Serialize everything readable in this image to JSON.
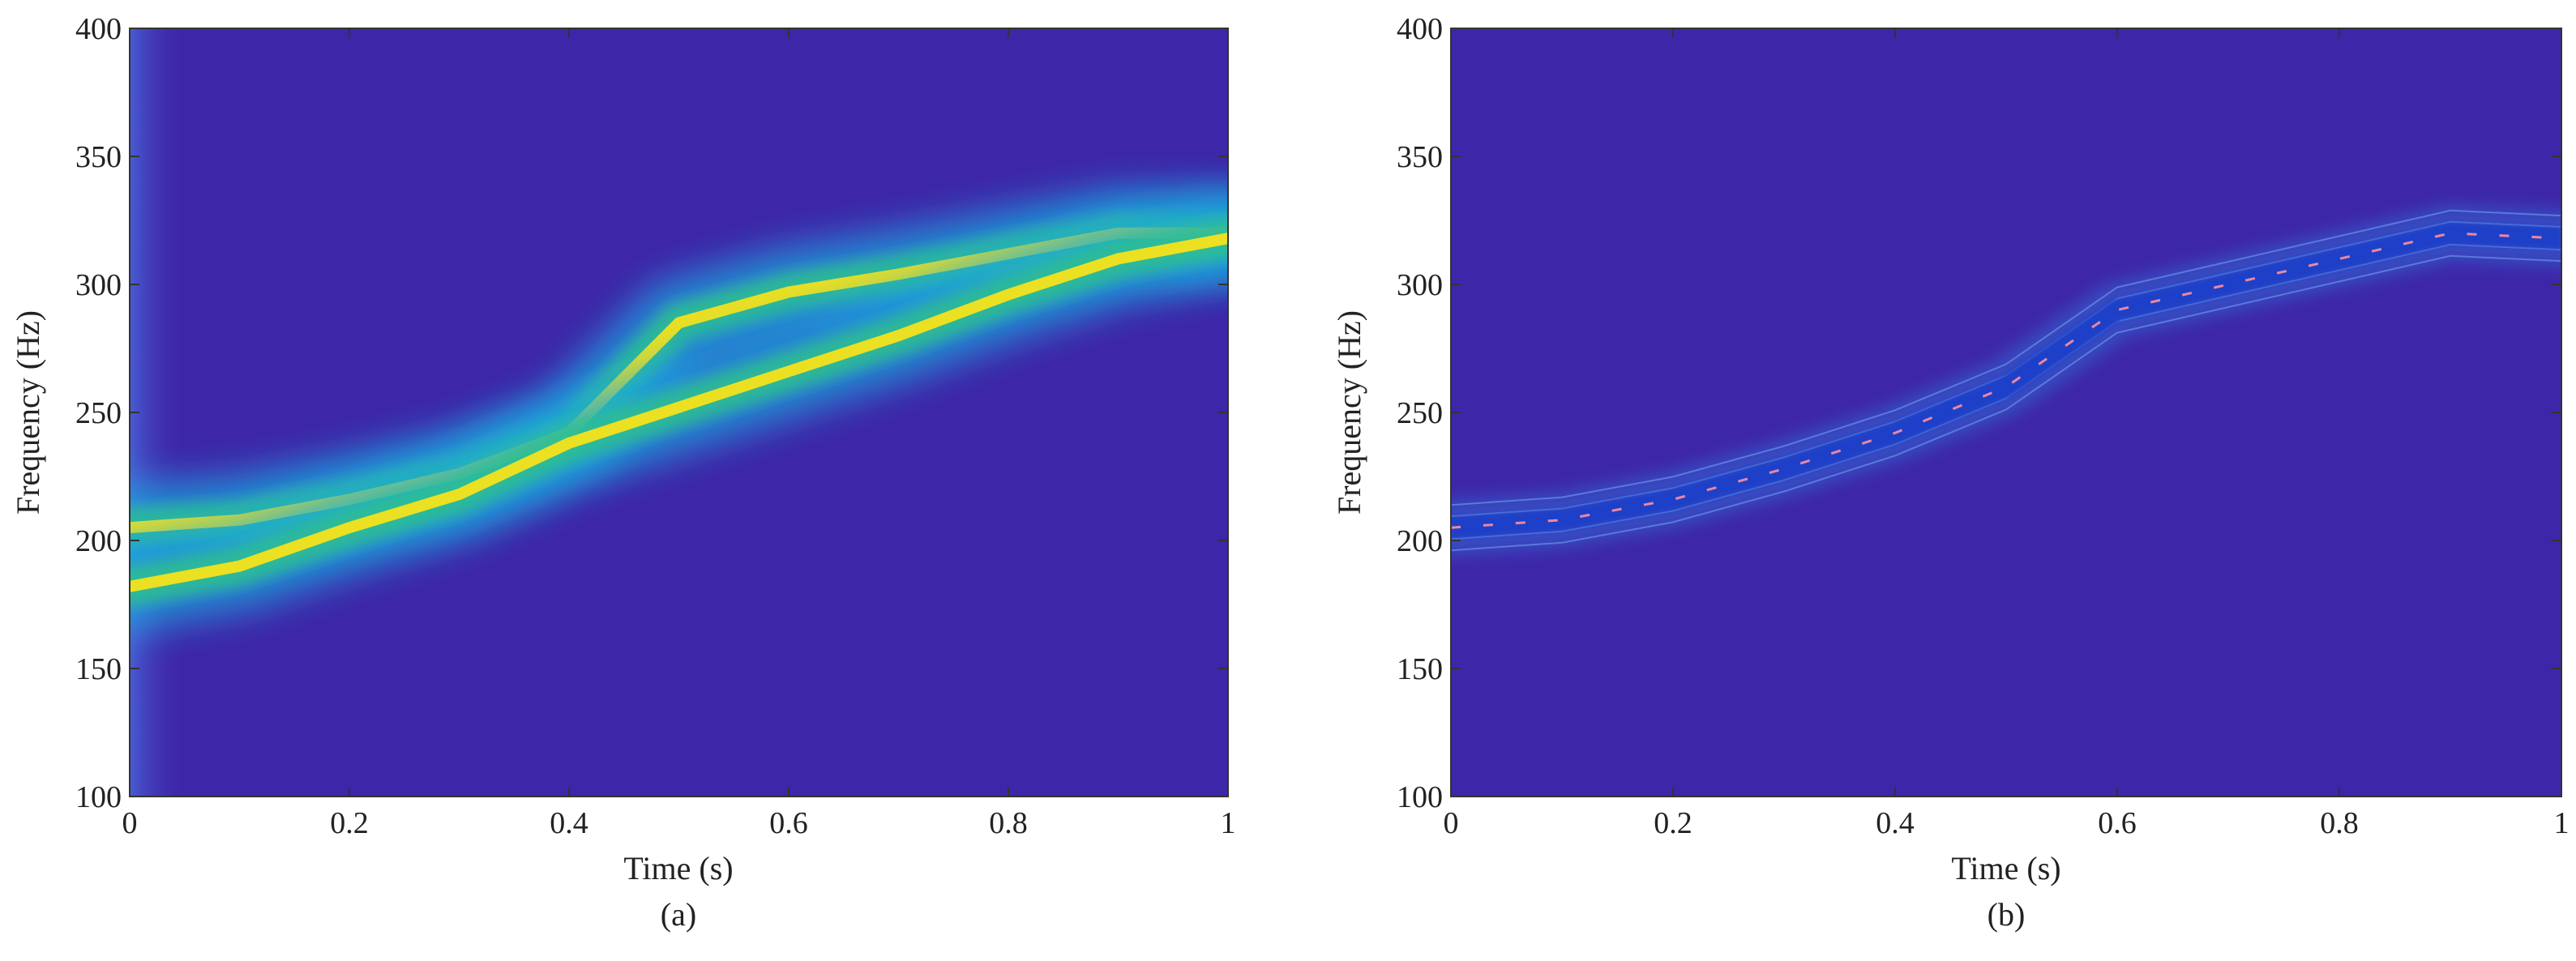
{
  "chart_data": [
    {
      "type": "heatmap",
      "panel_label": "(a)",
      "xlabel": "Time (s)",
      "ylabel": "Frequency (Hz)",
      "xlim": [
        0,
        1
      ],
      "ylim": [
        100,
        400
      ],
      "xticks": [
        0,
        0.2,
        0.4,
        0.6,
        0.8,
        1
      ],
      "xtick_labels": [
        "0",
        "0.2",
        "0.4",
        "0.6",
        "0.8",
        "1"
      ],
      "yticks": [
        100,
        150,
        200,
        250,
        300,
        350,
        400
      ],
      "ytick_labels": [
        "100",
        "150",
        "200",
        "250",
        "300",
        "350",
        "400"
      ],
      "colors": {
        "background": "#3e26a8",
        "low": "#1ea8e0",
        "mid": "#2fbf8f",
        "high": "#f5e21b"
      },
      "ridges": [
        {
          "x": [
            0,
            0.1,
            0.2,
            0.3,
            0.4,
            0.5,
            0.6,
            0.7,
            0.8,
            0.9,
            1.0
          ],
          "y": [
            205,
            208,
            216,
            226,
            242,
            285,
            297,
            304,
            312,
            320,
            320
          ]
        },
        {
          "x": [
            0,
            0.1,
            0.2,
            0.3,
            0.4,
            0.5,
            0.6,
            0.7,
            0.8,
            0.9,
            1.0
          ],
          "y": [
            182,
            190,
            205,
            218,
            238,
            252,
            266,
            280,
            296,
            310,
            318
          ]
        }
      ]
    },
    {
      "type": "heatmap",
      "panel_label": "(b)",
      "xlabel": "Time (s)",
      "ylabel": "Frequency (Hz)",
      "xlim": [
        0,
        1
      ],
      "ylim": [
        100,
        400
      ],
      "xticks": [
        0,
        0.2,
        0.4,
        0.6,
        0.8,
        1
      ],
      "xtick_labels": [
        "0",
        "0.2",
        "0.4",
        "0.6",
        "0.8",
        "1"
      ],
      "yticks": [
        100,
        150,
        200,
        250,
        300,
        350,
        400
      ],
      "ytick_labels": [
        "100",
        "150",
        "200",
        "250",
        "300",
        "350",
        "400"
      ],
      "colors": {
        "background": "#3e26a8",
        "line": "#2b8ff0",
        "highlight": "#ff8fa0"
      },
      "ridges": [
        {
          "x": [
            0,
            0.1,
            0.2,
            0.3,
            0.4,
            0.5,
            0.6,
            0.7,
            0.8,
            0.9,
            1.0
          ],
          "y": [
            205,
            208,
            216,
            228,
            242,
            260,
            290,
            300,
            310,
            320,
            318
          ]
        }
      ]
    }
  ]
}
